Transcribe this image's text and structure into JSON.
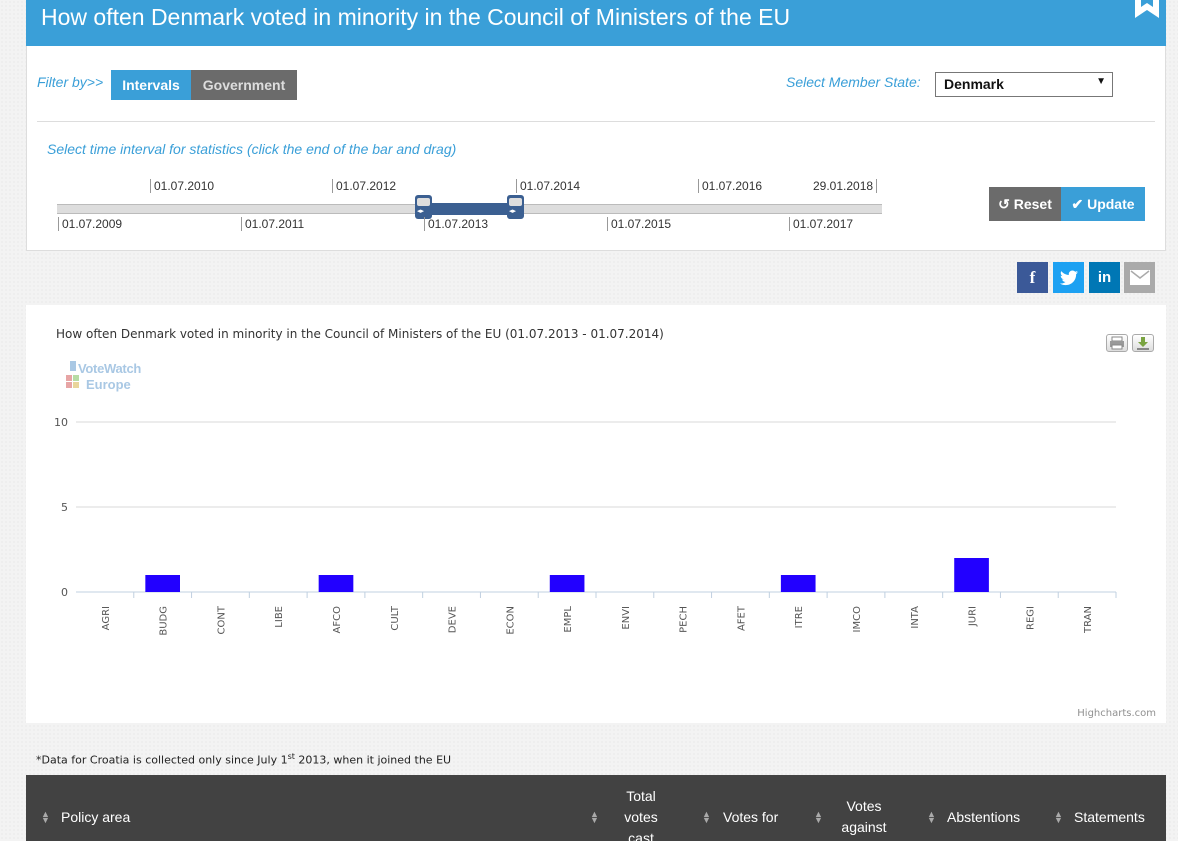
{
  "header": {
    "title": "How often Denmark voted in minority in the Council of Ministers of the EU"
  },
  "filter": {
    "label": "Filter by>>",
    "tabs": [
      "Intervals",
      "Government"
    ],
    "member_label": "Select Member State:",
    "member_value": "Denmark",
    "interval_caption": "Select time interval for statistics (click the end of the bar and drag)",
    "ticks_top": [
      "01.07.2010",
      "01.07.2012",
      "01.07.2014",
      "01.07.2016",
      "29.01.2018"
    ],
    "ticks_bottom": [
      "01.07.2009",
      "01.07.2011",
      "01.07.2013",
      "01.07.2015",
      "01.07.2017"
    ],
    "reset_label": "Reset",
    "update_label": "Update"
  },
  "share": [
    "f",
    "t",
    "in"
  ],
  "colors": {
    "accent": "#3a9fd8",
    "bar": "#2200ff",
    "dark": "#424242"
  },
  "chart_data": {
    "type": "bar",
    "title": "How often Denmark voted in minority in the Council of Ministers of the EU (01.07.2013 - 01.07.2014)",
    "categories": [
      "AGRI",
      "BUDG",
      "CONT",
      "LIBE",
      "AFCO",
      "CULT",
      "DEVE",
      "ECON",
      "EMPL",
      "ENVI",
      "PECH",
      "AFET",
      "ITRE",
      "IMCO",
      "INTA",
      "JURI",
      "REGI",
      "TRAN"
    ],
    "values": [
      0,
      1,
      0,
      0,
      1,
      0,
      0,
      0,
      1,
      0,
      0,
      0,
      1,
      0,
      0,
      2,
      0,
      0
    ],
    "yticks": [
      0,
      5,
      10
    ],
    "ylim": [
      0,
      10
    ],
    "grid": true,
    "credits": "Highcharts.com",
    "logo": "VoteWatch Europe"
  },
  "footnote": {
    "before": "*Data for Croatia is collected only since July 1",
    "sup": "st",
    "after": " 2013, when it joined the EU"
  },
  "table": {
    "headers": [
      "Policy area",
      "Total votes cast",
      "Votes for",
      "Votes against",
      "Abstentions",
      "Statements"
    ]
  }
}
